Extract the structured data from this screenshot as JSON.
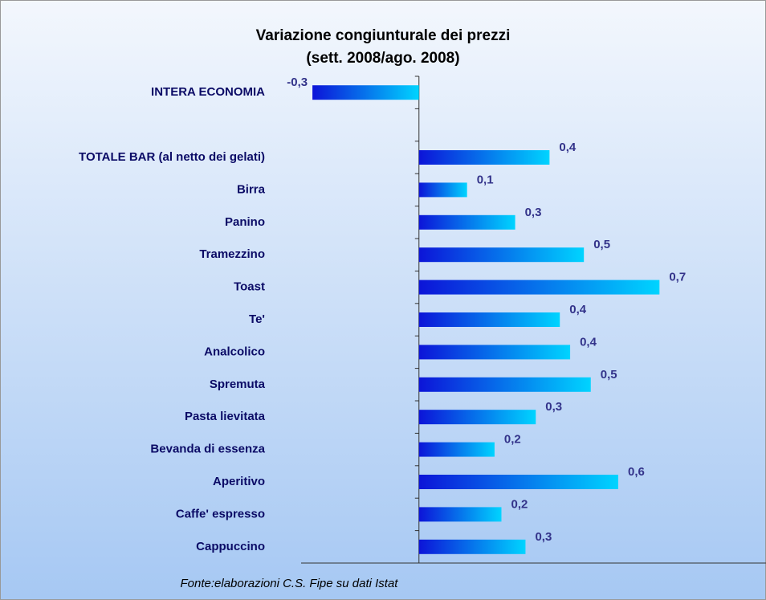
{
  "chart_data": {
    "type": "bar",
    "orientation": "horizontal",
    "title": "Variazione congiunturale dei prezzi",
    "subtitle": "(sett. 2008/ago. 2008)",
    "note": "Fonte:elaborazioni C.S. Fipe su dati Istat",
    "categories": [
      "INTERA ECONOMIA",
      null,
      "TOTALE BAR (al netto dei gelati)",
      "Birra",
      "Panino",
      "Tramezzino",
      "Toast",
      "Te'",
      "Analcolico",
      "Spremuta",
      "Pasta lievitata",
      "Bevanda di essenza",
      "Aperitivo",
      "Caffe' espresso",
      "Cappuccino"
    ],
    "values": [
      -0.31,
      null,
      0.38,
      0.14,
      0.28,
      0.48,
      0.7,
      0.41,
      0.44,
      0.5,
      0.34,
      0.22,
      0.58,
      0.24,
      0.31
    ],
    "value_labels": [
      "-0,3",
      null,
      "0,4",
      "0,1",
      "0,3",
      "0,5",
      "0,7",
      "0,4",
      "0,4",
      "0,5",
      "0,3",
      "0,2",
      "0,6",
      "0,2",
      "0,3"
    ],
    "xlim": [
      -0.35,
      1.01
    ],
    "colors": [
      "#0c14d8",
      "#00d4ff"
    ]
  }
}
